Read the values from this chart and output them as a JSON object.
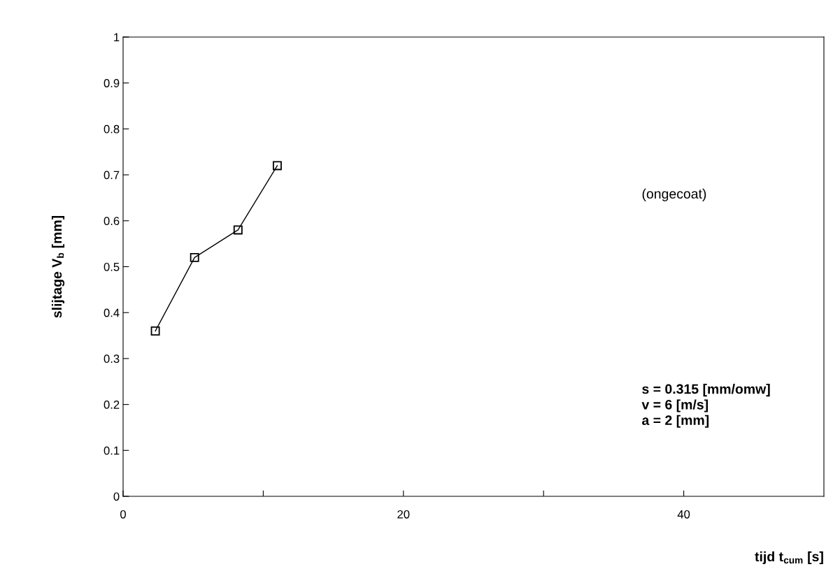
{
  "chart_data": {
    "type": "line",
    "xlabel": "tijd t$_{cum}$ [s]",
    "ylabel": "slijtage V$_{b}$ [mm]",
    "x": [
      2.3,
      5.1,
      8.2,
      11.0
    ],
    "series": [
      {
        "color": "#000000",
        "values": [
          0.36,
          0.52,
          0.58,
          0.72
        ]
      }
    ],
    "xlim": [
      0,
      50
    ],
    "xticks": [
      0,
      {
        "value": 10,
        "label": null
      },
      20,
      {
        "value": 30,
        "label": null
      },
      40
    ],
    "ylim": [
      0,
      1
    ],
    "yticks": [
      0,
      0.1,
      0.2,
      0.3,
      0.4,
      0.5,
      0.6,
      0.7,
      0.8,
      0.9,
      1
    ],
    "marker": "square",
    "line_style": "solid",
    "grid": false,
    "legend": false,
    "annotations": [
      "(ongecoat)",
      "s = 0.315 [mm/omw]\nv = 6 [m/s]\na = 2 [mm]"
    ]
  }
}
